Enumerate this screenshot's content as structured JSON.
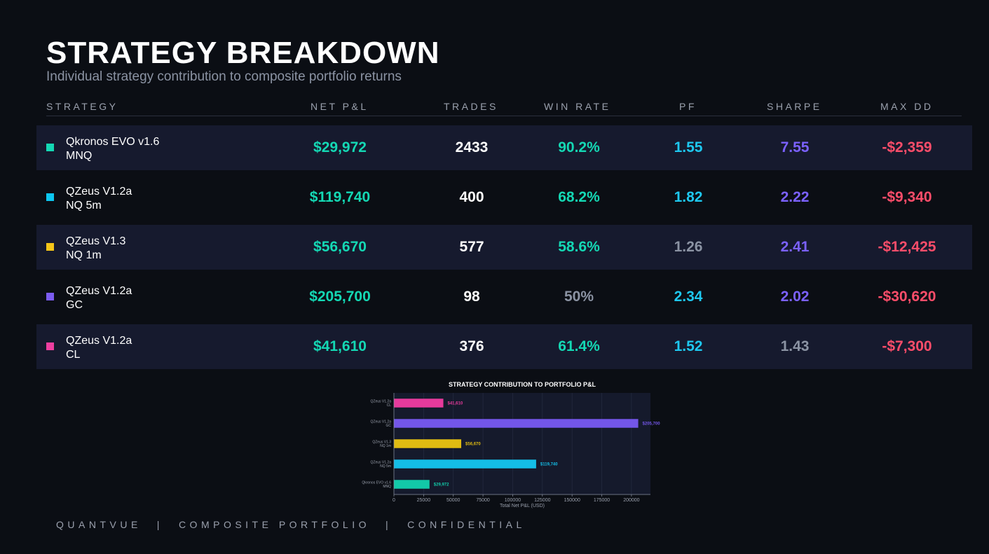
{
  "header": {
    "title": "STRATEGY BREAKDOWN",
    "subtitle": "Individual strategy contribution to composite portfolio returns"
  },
  "table": {
    "columns": [
      "STRATEGY",
      "NET P&L",
      "TRADES",
      "WIN RATE",
      "PF",
      "SHARPE",
      "MAX DD"
    ],
    "rows": [
      {
        "name": "Qkronos EVO v1.6",
        "instrument": "MNQ",
        "color": "#14d8b4",
        "net_pnl": "$29,972",
        "trades": "2433",
        "win_rate": "90.2%",
        "pf": "1.55",
        "sharpe": "7.55",
        "max_dd": "-$2,359"
      },
      {
        "name": "QZeus V1.2a",
        "instrument": "NQ 5m",
        "color": "#0cc6f0",
        "net_pnl": "$119,740",
        "trades": "400",
        "win_rate": "68.2%",
        "pf": "1.82",
        "sharpe": "2.22",
        "max_dd": "-$9,340"
      },
      {
        "name": "QZeus V1.3",
        "instrument": "NQ 1m",
        "color": "#f5c518",
        "net_pnl": "$56,670",
        "trades": "577",
        "win_rate": "58.6%",
        "pf": "1.26",
        "sharpe": "2.41",
        "max_dd": "-$12,425"
      },
      {
        "name": "QZeus V1.2a",
        "instrument": "GC",
        "color": "#7b5cf0",
        "net_pnl": "$205,700",
        "trades": "98",
        "win_rate": "50%",
        "pf": "2.34",
        "sharpe": "2.02",
        "max_dd": "-$30,620"
      },
      {
        "name": "QZeus V1.2a",
        "instrument": "CL",
        "color": "#ee3fa0",
        "net_pnl": "$41,610",
        "trades": "376",
        "win_rate": "61.4%",
        "pf": "1.52",
        "sharpe": "1.43",
        "max_dd": "-$7,300"
      }
    ]
  },
  "colors": {
    "positive": "#14d8b4",
    "pf": "#1ec8f0",
    "sharpe": "#7b61ff",
    "drawdown": "#ff4d6a",
    "muted": "#8b93a3"
  },
  "chart_data": {
    "type": "bar",
    "orientation": "horizontal",
    "title": "STRATEGY CONTRIBUTION TO PORTFOLIO P&L",
    "xlabel": "Total Net P&L (USD)",
    "ylabel": "",
    "xlim": [
      0,
      216000
    ],
    "x_ticks": [
      0,
      25000,
      50000,
      75000,
      100000,
      125000,
      150000,
      175000,
      200000
    ],
    "categories": [
      "QZeus V1.2a CL",
      "QZeus V1.2a GC",
      "QZeus V1.3 NQ 1m",
      "QZeus V1.2a NQ 5m",
      "Qkronos EVO v1.6 MNQ"
    ],
    "category_lines": [
      [
        "QZeus V1.2a",
        "CL"
      ],
      [
        "QZeus V1.2a",
        "GC"
      ],
      [
        "QZeus V1.3",
        "NQ 1m"
      ],
      [
        "QZeus V1.2a",
        "NQ 5m"
      ],
      [
        "Qkronos EVO v1.6",
        "MNQ"
      ]
    ],
    "values": [
      41610,
      205700,
      56670,
      119740,
      29972
    ],
    "value_labels": [
      "$41,610",
      "$205,700",
      "$56,670",
      "$119,740",
      "$29,972"
    ],
    "colors": [
      "#e63a9c",
      "#7356e8",
      "#e0bb12",
      "#14bde6",
      "#12c9a8"
    ]
  },
  "footer": {
    "brand": "QUANTVUE",
    "section": "COMPOSITE PORTFOLIO",
    "classification": "CONFIDENTIAL",
    "separator": "|"
  }
}
